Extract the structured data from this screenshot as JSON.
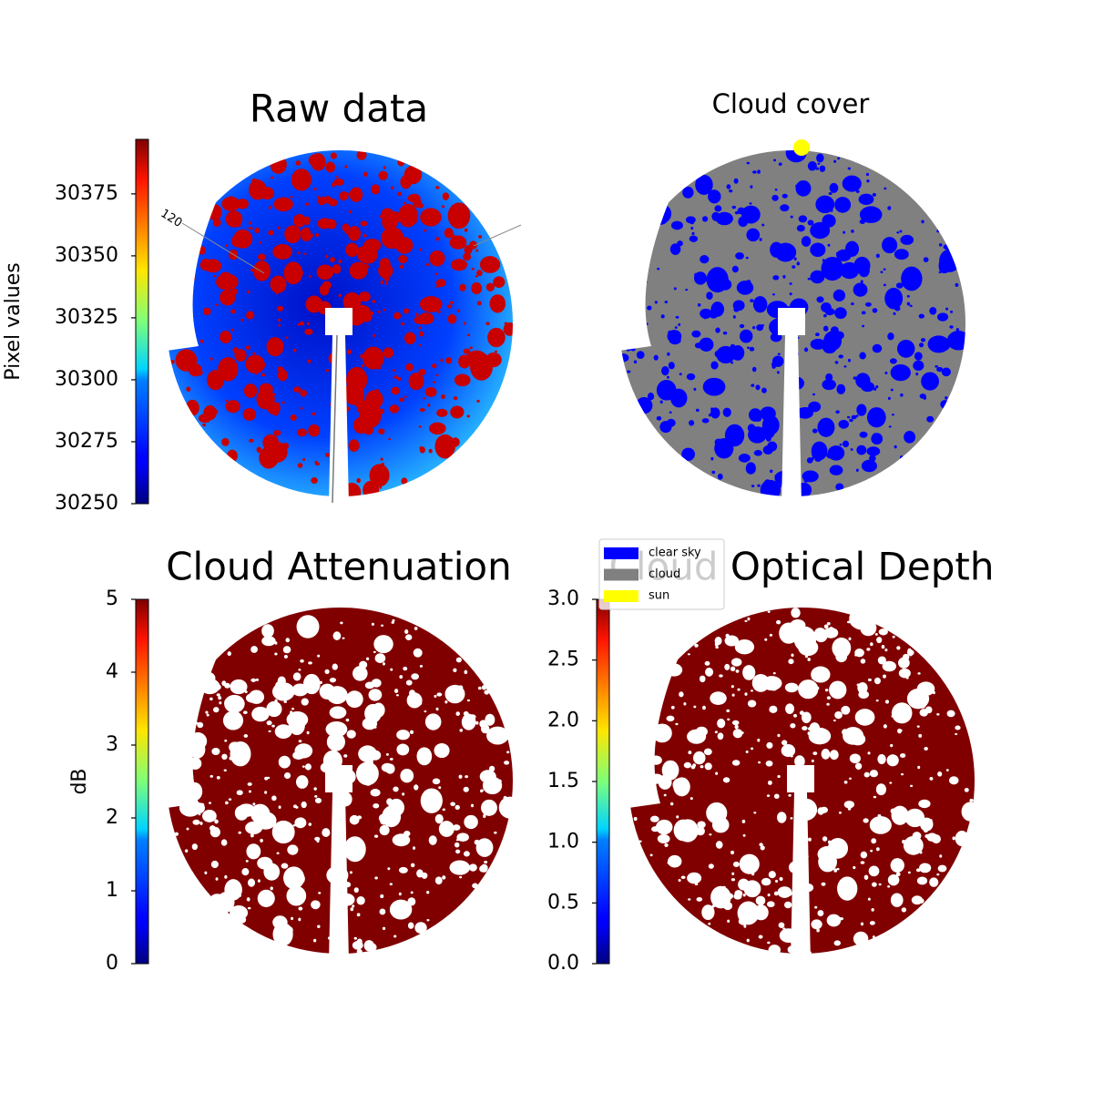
{
  "chart_data": [
    {
      "type": "image",
      "title": "Raw data",
      "ylabel": "Pixel values",
      "annotations": [
        "120"
      ],
      "ylim": [
        30250,
        30397
      ],
      "yticks": [
        30250,
        30275,
        30300,
        30325,
        30350,
        30375
      ]
    },
    {
      "type": "image",
      "title": "Cloud cover",
      "series": [
        {
          "name": "clear sky",
          "color": "#0000ff"
        },
        {
          "name": "cloud",
          "color": "#808080"
        },
        {
          "name": "sun",
          "color": "#ffff00"
        }
      ]
    },
    {
      "type": "image",
      "title": "Cloud Attenuation",
      "ylabel": "dB",
      "color": "#800000",
      "ylim": [
        0,
        5
      ],
      "yticks": [
        0,
        1,
        2,
        3,
        4,
        5
      ]
    },
    {
      "type": "image",
      "title": "Cloud Optical Depth",
      "color": "#800000",
      "ylim": [
        0,
        3
      ],
      "yticks": [
        {
          "value": 0,
          "label": "0.0"
        },
        {
          "value": 0.5,
          "label": "0.5"
        },
        {
          "value": 1,
          "label": "1.0"
        },
        {
          "value": 1.5,
          "label": "1.5"
        },
        {
          "value": 2,
          "label": "2.0"
        },
        {
          "value": 2.5,
          "label": "2.5"
        },
        {
          "value": 3,
          "label": "3.0"
        }
      ]
    }
  ]
}
